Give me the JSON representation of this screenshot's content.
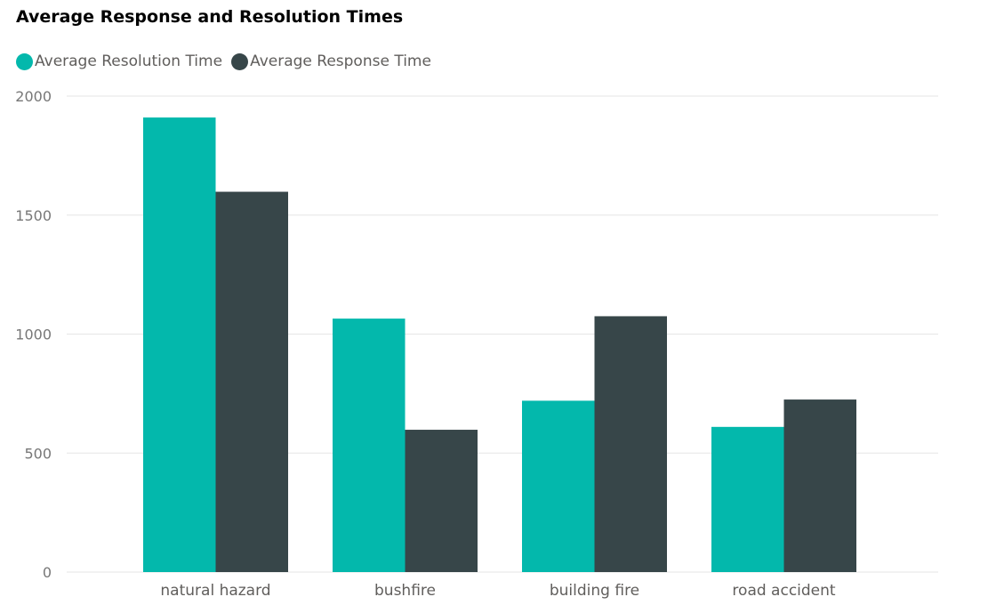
{
  "chart_data": {
    "type": "bar",
    "title": "Average Response and Resolution Times",
    "categories": [
      "natural hazard",
      "bushfire",
      "building fire",
      "road accident"
    ],
    "series": [
      {
        "name": "Average Resolution Time",
        "color": "#03b8ac",
        "values": [
          1910,
          1065,
          720,
          610
        ]
      },
      {
        "name": "Average Response Time",
        "color": "#374649",
        "values": [
          1598,
          598,
          1075,
          725
        ]
      }
    ],
    "ylim": [
      0,
      2000
    ],
    "yticks": [
      0,
      500,
      1000,
      1500,
      2000
    ],
    "xlabel": "",
    "ylabel": "",
    "grid": true,
    "legend_position": "top-left"
  }
}
